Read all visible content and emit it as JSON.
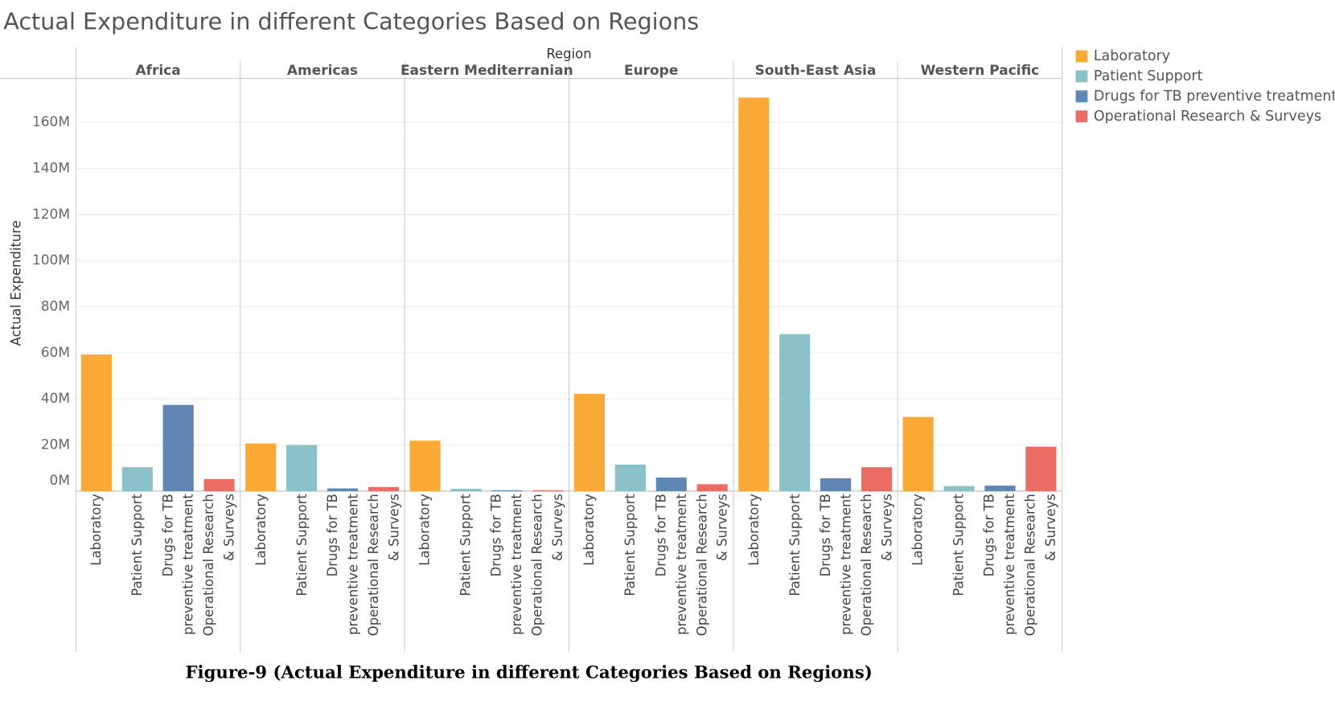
{
  "chart_data": {
    "type": "bar",
    "title": "Actual Expenditure in different Categories Based on Regions",
    "x_label": "Region",
    "y_label": "Actual Expenditure",
    "caption": "Figure-9 (Actual Expenditure in different Categories Based on Regions)",
    "categories": [
      "Africa",
      "Americas",
      "Eastern Mediterranian",
      "Europe",
      "South-East Asia",
      "Western Pacific"
    ],
    "series": [
      {
        "name": "Laboratory",
        "color": "#f9aa36",
        "values": [
          59300000,
          20700000,
          21900000,
          42200000,
          170700000,
          32200000
        ]
      },
      {
        "name": "Patient Support",
        "color": "#8ac1c9",
        "values": [
          10400000,
          20000000,
          1000000,
          11500000,
          68100000,
          2200000
        ]
      },
      {
        "name": "Drugs for TB preventive treatment",
        "color": "#6086b3",
        "values": [
          37400000,
          1200000,
          400000,
          5900000,
          5600000,
          2400000
        ]
      },
      {
        "name": "Operational Research & Surveys",
        "color": "#eb6b65",
        "values": [
          5200000,
          1800000,
          400000,
          3000000,
          10400000,
          19300000
        ]
      }
    ],
    "ylim": [
      0,
      179000000
    ],
    "yticks": [
      {
        "value": 0,
        "label": "0M"
      },
      {
        "value": 20000000,
        "label": "20M"
      },
      {
        "value": 40000000,
        "label": "40M"
      },
      {
        "value": 60000000,
        "label": "60M"
      },
      {
        "value": 80000000,
        "label": "80M"
      },
      {
        "value": 100000000,
        "label": "100M"
      },
      {
        "value": 120000000,
        "label": "120M"
      },
      {
        "value": 140000000,
        "label": "140M"
      },
      {
        "value": 160000000,
        "label": "160M"
      }
    ],
    "grid": true,
    "legend": "right"
  }
}
